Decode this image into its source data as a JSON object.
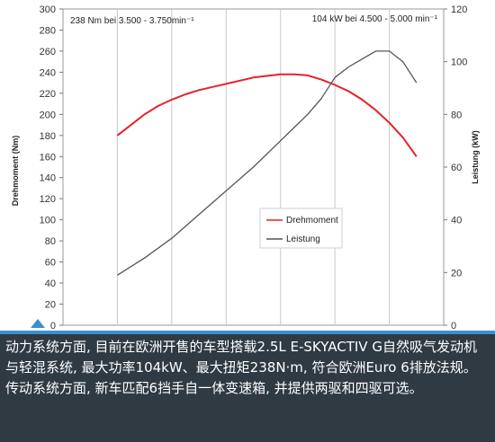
{
  "chart_data": {
    "type": "line",
    "annotations": {
      "left": "238 Nm bei 3.500 - 3.750min⁻¹",
      "right": "104 kW bei 4.500 - 5.000 min⁻¹"
    },
    "y_left": {
      "label": "Drehmoment (Nm)",
      "range": [
        0,
        300
      ],
      "ticks": [
        0,
        20,
        40,
        60,
        80,
        100,
        120,
        140,
        160,
        180,
        200,
        220,
        240,
        260,
        280,
        300
      ]
    },
    "y_right": {
      "label": "Leistung (kW)",
      "range": [
        0,
        120
      ],
      "ticks": [
        0,
        20,
        40,
        60,
        80,
        100,
        120
      ]
    },
    "x": {
      "range": [
        0,
        7
      ],
      "ticks": [
        1,
        2,
        3,
        4,
        5,
        6
      ],
      "tick_labels": false
    },
    "grid": "vertical",
    "legend_position": "center-right",
    "series": [
      {
        "name": "Drehmoment",
        "axis": "left",
        "color": "#e8202a",
        "x": [
          1.0,
          1.25,
          1.5,
          1.75,
          2.0,
          2.25,
          2.5,
          2.75,
          3.0,
          3.25,
          3.5,
          3.75,
          4.0,
          4.25,
          4.5,
          4.75,
          5.0,
          5.25,
          5.5,
          5.75,
          6.0,
          6.25,
          6.5
        ],
        "values": [
          180,
          190,
          200,
          208,
          214,
          219,
          223,
          226,
          229,
          232,
          235,
          236.5,
          238,
          238,
          237,
          233,
          228,
          222,
          214,
          204,
          192,
          178,
          160
        ]
      },
      {
        "name": "Leistung",
        "axis": "right",
        "color": "#555555",
        "x": [
          1.0,
          1.5,
          2.0,
          2.5,
          3.0,
          3.5,
          4.0,
          4.25,
          4.5,
          4.75,
          5.0,
          5.25,
          5.5,
          5.75,
          6.0,
          6.25,
          6.5
        ],
        "values": [
          19,
          25.5,
          33,
          42,
          51,
          60,
          70,
          75,
          80,
          86,
          94,
          98,
          101,
          104,
          104,
          100,
          92
        ]
      }
    ]
  },
  "caption": "动力系统方面, 目前在欧洲开售的车型搭载2.5L E-SKYACTIV G自然吸气发动机与轻混系统, 最大功率104kW、最大扭矩238N·m, 符合欧洲Euro 6排放法规。传动系统方面, 新车匹配6挡手自一体变速箱, 并提供两驱和四驱可选。"
}
